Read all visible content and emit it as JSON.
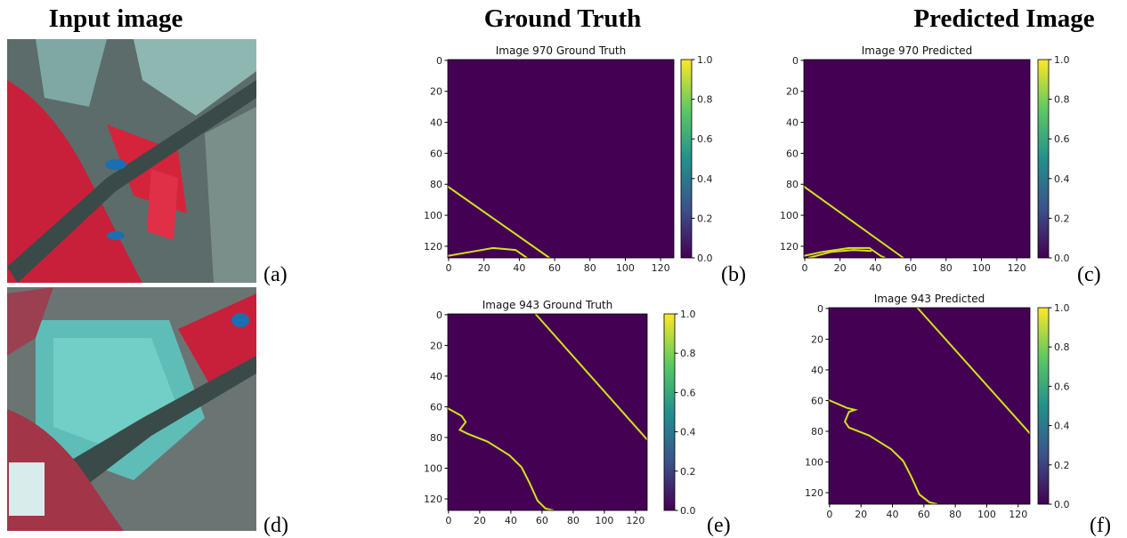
{
  "headers": [
    "Input image",
    "Ground Truth",
    "Predicted Image"
  ],
  "panel_labels": [
    "(a)",
    "(b)",
    "(c)",
    "(d)",
    "(e)",
    "(f)"
  ],
  "plots": [
    {
      "title": "Image 970 Ground Truth",
      "xlim": [
        -0.5,
        127.5
      ],
      "ylim": [
        127.5,
        -0.5
      ],
      "xticks": [
        0,
        20,
        40,
        60,
        80,
        100,
        120
      ],
      "yticks": [
        0,
        20,
        40,
        60,
        80,
        100,
        120
      ],
      "clim": [
        0,
        1
      ],
      "cticks": [
        {
          "value": 0,
          "label": "0.0"
        },
        {
          "value": 0.2,
          "label": "0.2"
        },
        {
          "value": 0.4,
          "label": "0.4"
        },
        {
          "value": 0.6,
          "label": "0.6"
        },
        {
          "value": 0.8,
          "label": "0.8"
        },
        {
          "value": 1,
          "label": "1.0"
        }
      ]
    },
    {
      "title": "Image 970 Predicted",
      "xlim": [
        -0.5,
        127.5
      ],
      "ylim": [
        127.5,
        -0.5
      ],
      "xticks": [
        0,
        20,
        40,
        60,
        80,
        100,
        120
      ],
      "yticks": [
        0,
        20,
        40,
        60,
        80,
        100,
        120
      ],
      "clim": [
        0,
        1
      ],
      "cticks": [
        {
          "value": 0,
          "label": "0.0"
        },
        {
          "value": 0.2,
          "label": "0.2"
        },
        {
          "value": 0.4,
          "label": "0.4"
        },
        {
          "value": 0.6,
          "label": "0.6"
        },
        {
          "value": 0.8,
          "label": "0.8"
        },
        {
          "value": 1,
          "label": "1.0"
        }
      ]
    },
    {
      "title": "Image 943 Ground Truth",
      "xlim": [
        -0.5,
        127.5
      ],
      "ylim": [
        127.5,
        -0.5
      ],
      "xticks": [
        0,
        20,
        40,
        60,
        80,
        100,
        120
      ],
      "yticks": [
        0,
        20,
        40,
        60,
        80,
        100,
        120
      ],
      "clim": [
        0,
        1
      ],
      "cticks": [
        {
          "value": 0,
          "label": "0.0"
        },
        {
          "value": 0.2,
          "label": "0.2"
        },
        {
          "value": 0.4,
          "label": "0.4"
        },
        {
          "value": 0.6,
          "label": "0.6"
        },
        {
          "value": 0.8,
          "label": "0.8"
        },
        {
          "value": 1,
          "label": "1.0"
        }
      ]
    },
    {
      "title": "Image 943 Predicted",
      "xlim": [
        -0.5,
        127.5
      ],
      "ylim": [
        127.5,
        -0.5
      ],
      "xticks": [
        0,
        20,
        40,
        60,
        80,
        100,
        120
      ],
      "yticks": [
        0,
        20,
        40,
        60,
        80,
        100,
        120
      ],
      "clim": [
        0,
        1
      ],
      "cticks": [
        {
          "value": 0,
          "label": "0.0"
        },
        {
          "value": 0.2,
          "label": "0.2"
        },
        {
          "value": 0.4,
          "label": "0.4"
        },
        {
          "value": 0.6,
          "label": "0.6"
        },
        {
          "value": 0.8,
          "label": "0.8"
        },
        {
          "value": 1,
          "label": "1.0"
        }
      ]
    }
  ]
}
